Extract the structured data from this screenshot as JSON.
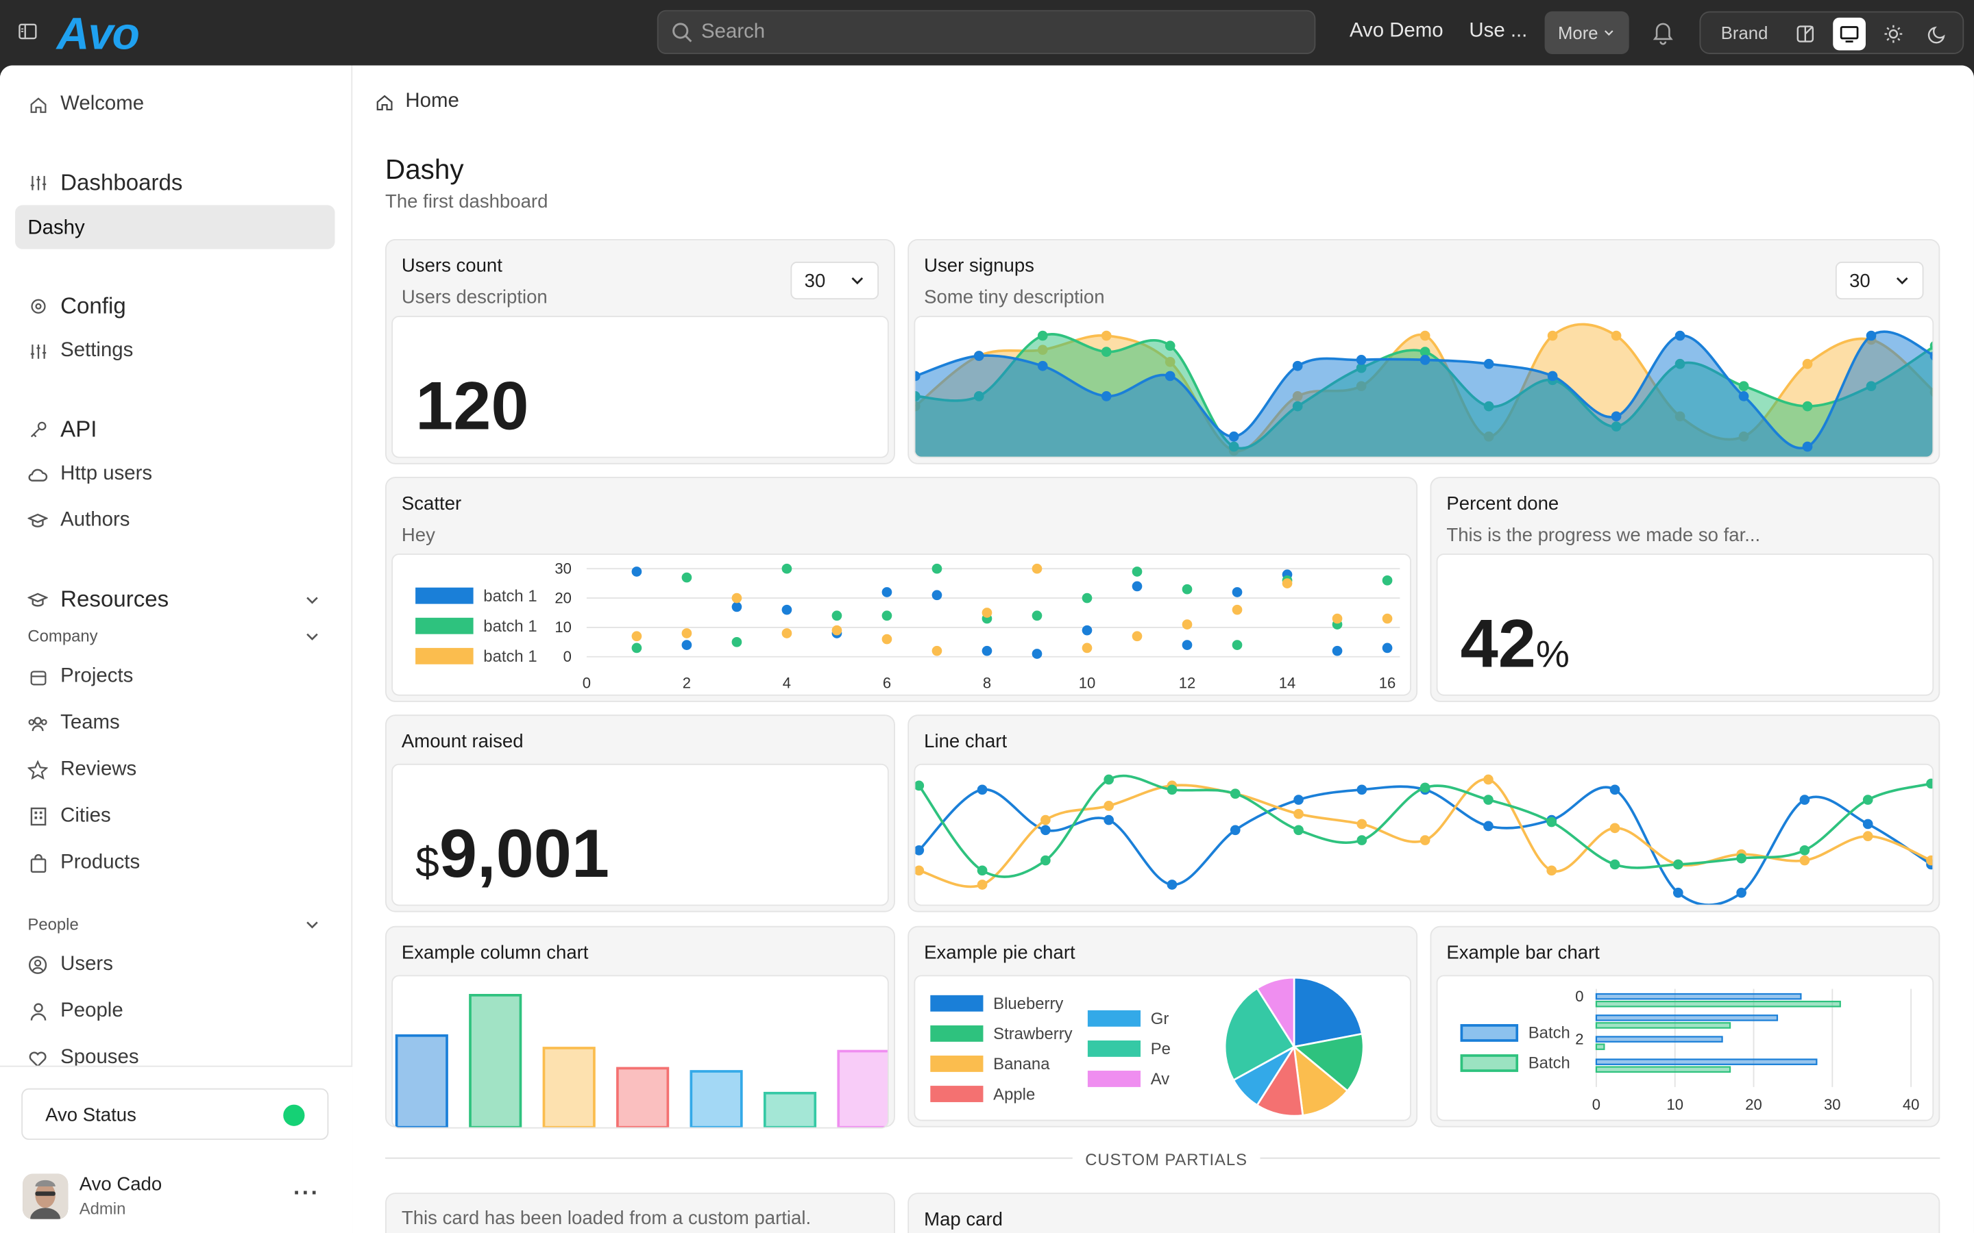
{
  "topbar": {
    "logo": "Avo",
    "search_placeholder": "Search",
    "links": [
      "Avo Demo",
      "Use ..."
    ],
    "more_label": "More",
    "brand_label": "Brand"
  },
  "sidebar": {
    "welcome": "Welcome",
    "dashboards_header": "Dashboards",
    "dashy": "Dashy",
    "config_header": "Config",
    "settings": "Settings",
    "api_header": "API",
    "http_users": "Http users",
    "authors": "Authors",
    "resources_header": "Resources",
    "company_group": "Company",
    "company_items": [
      "Projects",
      "Teams",
      "Reviews",
      "Cities",
      "Products"
    ],
    "people_group": "People",
    "people_items": [
      "Users",
      "People",
      "Spouses"
    ],
    "status_label": "Avo Status",
    "status_color": "#15d175",
    "user_name": "Avo Cado",
    "user_role": "Admin"
  },
  "page": {
    "breadcrumb": "Home",
    "title": "Dashy",
    "subtitle": "The first dashboard"
  },
  "cards": {
    "users_count": {
      "title": "Users count",
      "description": "Users description",
      "range": "30",
      "value": "120"
    },
    "user_signups": {
      "title": "User signups",
      "description": "Some tiny description",
      "range": "30"
    },
    "scatter": {
      "title": "Scatter",
      "description": "Hey"
    },
    "percent_done": {
      "title": "Percent done",
      "description": "This is the progress we made so far...",
      "value": "42",
      "suffix": "%"
    },
    "amount_raised": {
      "title": "Amount raised",
      "prefix": "$",
      "value": "9,001"
    },
    "line_chart": {
      "title": "Line chart"
    },
    "column_chart": {
      "title": "Example column chart"
    },
    "pie_chart": {
      "title": "Example pie chart"
    },
    "bar_chart": {
      "title": "Example bar chart"
    }
  },
  "custom_partials_label": "CUSTOM PARTIALS",
  "partial_card_text": "This card has been loaded from a custom partial.",
  "map_card_title": "Map card",
  "colors": {
    "blue": "#1a7fd8",
    "green": "#2ec27e",
    "orange": "#fbbd4e",
    "red": "#f47171",
    "sky": "#33a9e8",
    "teal": "#35c9a5",
    "violet": "#ef8ef0"
  },
  "chart_data": [
    {
      "type": "area",
      "title": "User signups",
      "x": [
        1,
        2,
        3,
        4,
        5,
        6,
        7,
        8,
        9,
        10,
        11,
        12,
        13,
        14,
        15,
        16,
        17
      ],
      "series": [
        {
          "color": "#1a7fd8",
          "values": [
            4,
            5,
            4.5,
            3,
            4,
            1,
            4.5,
            4.8,
            4.8,
            4.6,
            4,
            2,
            6,
            3,
            0.5,
            6,
            5
          ]
        },
        {
          "color": "#2ec27e",
          "values": [
            3,
            3,
            6,
            5.2,
            5.5,
            0.5,
            2.5,
            4.4,
            5.2,
            2.5,
            3.8,
            1.5,
            4.6,
            3.5,
            2.5,
            3.5,
            5.5
          ]
        },
        {
          "color": "#fbbd4e",
          "values": [
            2.5,
            5,
            5.3,
            6,
            4.7,
            0.3,
            3,
            3.5,
            6,
            1,
            6,
            6,
            2,
            1,
            4.6,
            5.8,
            3.2
          ]
        }
      ]
    },
    {
      "type": "scatter",
      "title": "Scatter",
      "x_ticks": [
        0,
        2,
        4,
        6,
        8,
        10,
        12,
        14,
        16
      ],
      "y_ticks": [
        0,
        10,
        20,
        30
      ],
      "xlim": [
        0,
        16
      ],
      "ylim": [
        0,
        30
      ],
      "legend": "left",
      "series": [
        {
          "name": "batch 1",
          "color": "#1a7fd8",
          "points": [
            [
              1,
              29
            ],
            [
              2,
              4
            ],
            [
              3,
              17
            ],
            [
              4,
              16
            ],
            [
              5,
              8
            ],
            [
              6,
              22
            ],
            [
              7,
              21
            ],
            [
              8,
              2
            ],
            [
              9,
              1
            ],
            [
              10,
              9
            ],
            [
              11,
              24
            ],
            [
              12,
              4
            ],
            [
              13,
              22
            ],
            [
              14,
              28
            ],
            [
              15,
              2
            ],
            [
              16,
              3
            ]
          ]
        },
        {
          "name": "batch 1",
          "color": "#2ec27e",
          "points": [
            [
              1,
              3
            ],
            [
              2,
              27
            ],
            [
              3,
              5
            ],
            [
              4,
              30
            ],
            [
              5,
              14
            ],
            [
              6,
              14
            ],
            [
              7,
              30
            ],
            [
              8,
              13
            ],
            [
              9,
              14
            ],
            [
              10,
              20
            ],
            [
              11,
              29
            ],
            [
              12,
              23
            ],
            [
              13,
              4
            ],
            [
              14,
              26
            ],
            [
              15,
              11
            ],
            [
              16,
              26
            ]
          ]
        },
        {
          "name": "batch 1",
          "color": "#fbbd4e",
          "points": [
            [
              1,
              7
            ],
            [
              2,
              8
            ],
            [
              3,
              20
            ],
            [
              4,
              8
            ],
            [
              5,
              9
            ],
            [
              6,
              6
            ],
            [
              7,
              2
            ],
            [
              8,
              15
            ],
            [
              9,
              30
            ],
            [
              10,
              3
            ],
            [
              11,
              7
            ],
            [
              12,
              11
            ],
            [
              13,
              16
            ],
            [
              14,
              25
            ],
            [
              15,
              13
            ],
            [
              16,
              13
            ]
          ]
        }
      ]
    },
    {
      "type": "line",
      "title": "Line chart",
      "x": [
        1,
        2,
        3,
        4,
        5,
        6,
        7,
        8,
        9,
        10,
        11,
        12,
        13,
        14,
        15,
        16,
        17
      ],
      "series": [
        {
          "color": "#1a7fd8",
          "values": [
            2.5,
            5.5,
            3.5,
            4,
            0.8,
            3.5,
            5,
            5.5,
            5.5,
            3.7,
            4,
            5.5,
            0.4,
            0.4,
            5,
            3.8,
            1.8
          ]
        },
        {
          "color": "#fbbd4e",
          "values": [
            1.5,
            0.8,
            4,
            4.7,
            5.7,
            5.3,
            4.3,
            3.8,
            3,
            6,
            1.5,
            3.6,
            1.8,
            2.3,
            2,
            3.2,
            2
          ]
        },
        {
          "color": "#2ec27e",
          "values": [
            5.7,
            1.5,
            2,
            6,
            5.5,
            5.3,
            3.5,
            3,
            5.6,
            5,
            3.9,
            1.8,
            1.8,
            2.1,
            2.5,
            5,
            5.8
          ]
        }
      ]
    },
    {
      "type": "bar",
      "title": "Example column chart",
      "categories": [
        "1",
        "2",
        "3",
        "4",
        "5",
        "6",
        "7"
      ],
      "colors": [
        "#1a7fd8",
        "#2ec27e",
        "#fbbd4e",
        "#f47171",
        "#33a9e8",
        "#35c9a5",
        "#ef8ef0"
      ],
      "values": [
        59,
        85,
        51,
        38,
        36,
        22,
        49
      ],
      "ylim": [
        0,
        100
      ]
    },
    {
      "type": "pie",
      "title": "Example pie chart",
      "labels": [
        "Blueberry",
        "Strawberry",
        "Banana",
        "Apple",
        "Gr",
        "Pe",
        "Av"
      ],
      "colors": [
        "#1a7fd8",
        "#2ec27e",
        "#fbbd4e",
        "#f47171",
        "#33a9e8",
        "#35c9a5",
        "#ef8ef0"
      ],
      "values": [
        22,
        14,
        12,
        11,
        8,
        24,
        9
      ]
    },
    {
      "type": "bar",
      "orientation": "horizontal",
      "title": "Example bar chart",
      "y_ticks": [
        "0",
        "2"
      ],
      "x_ticks": [
        0,
        10,
        20,
        30,
        40
      ],
      "xlim": [
        0,
        40
      ],
      "legend": "left",
      "series": [
        {
          "name": "Batch",
          "color": "#1a7fd8",
          "values": [
            26,
            23,
            16,
            28
          ]
        },
        {
          "name": "Batch",
          "color": "#2ec27e",
          "values": [
            31,
            17,
            1,
            17
          ]
        }
      ]
    }
  ]
}
